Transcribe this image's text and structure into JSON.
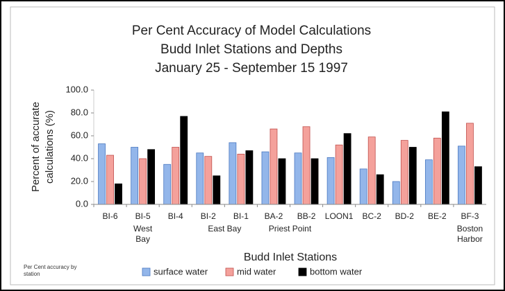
{
  "chart_data": {
    "type": "bar",
    "title": [
      "Per Cent Accuracy of Model Calculations",
      "Budd Inlet Stations and Depths",
      "January 25 - September 15 1997"
    ],
    "ylabel": [
      "Percent of accurate",
      "calculations (%)"
    ],
    "xlabel": "Budd Inlet Stations",
    "footnote": "Per Cent accuracy by station",
    "categories": [
      "BI-6",
      "BI-5",
      "BI-4",
      "BI-2",
      "BI-1",
      "BA-2",
      "BB-2",
      "LOON1",
      "BC-2",
      "BD-2",
      "BE-2",
      "BF-3"
    ],
    "category_groups": [
      null,
      "West Bay",
      null,
      "East Bay",
      "East Bay",
      "Priest Point",
      "Priest Point",
      null,
      null,
      null,
      null,
      "Boston Harbor"
    ],
    "series": [
      {
        "name": "surface water",
        "color": "#93b6ea",
        "values": [
          53,
          50,
          35,
          45,
          54,
          46,
          45,
          41,
          31,
          20,
          39,
          51
        ]
      },
      {
        "name": "mid water",
        "color": "#f4a19b",
        "values": [
          43,
          40,
          50,
          42,
          44,
          66,
          68,
          52,
          59,
          56,
          58,
          71
        ]
      },
      {
        "name": "bottom water",
        "color": "#000000",
        "values": [
          18,
          48,
          77,
          25,
          47,
          40,
          40,
          62,
          26,
          50,
          81,
          33
        ]
      }
    ],
    "ylim": [
      0,
      100
    ],
    "yticks": [
      {
        "value": 0,
        "label": "0.0"
      },
      {
        "value": 20,
        "label": "20.0"
      },
      {
        "value": 40,
        "label": "40.0"
      },
      {
        "value": 60,
        "label": "60.0"
      },
      {
        "value": 80,
        "label": "80.0"
      },
      {
        "value": 100,
        "label": "100.0"
      }
    ],
    "legend": "bottom"
  }
}
